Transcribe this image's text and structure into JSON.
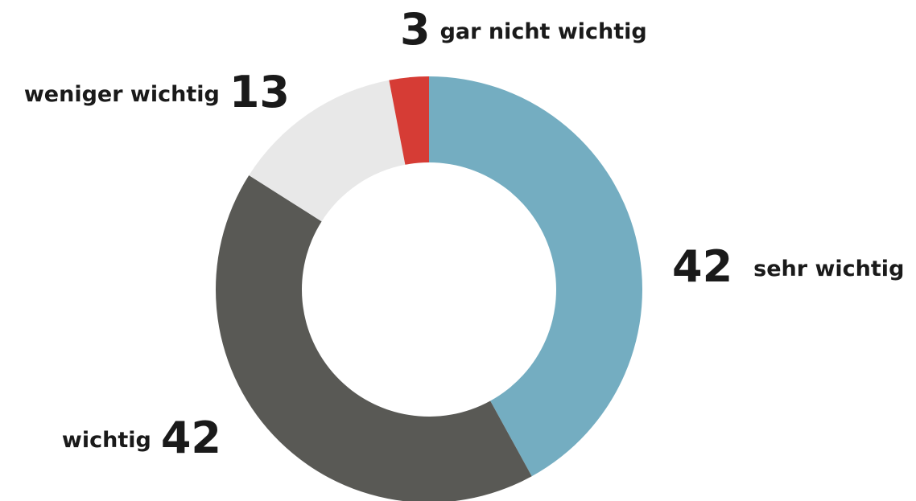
{
  "chart_data": {
    "type": "pie",
    "donut": true,
    "categories": [
      "sehr wichtig",
      "wichtig",
      "weniger wichtig",
      "gar nicht wichtig"
    ],
    "values": [
      42,
      42,
      13,
      3
    ],
    "colors": [
      "#74adc1",
      "#595955",
      "#e8e8e8",
      "#d63c35"
    ]
  }
}
